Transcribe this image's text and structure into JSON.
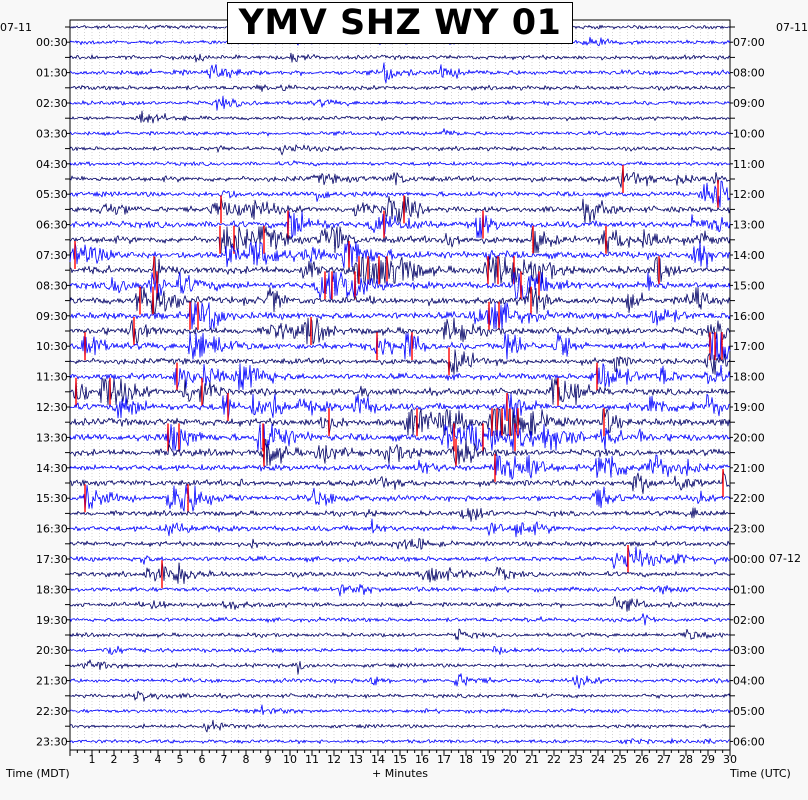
{
  "chart_data": {
    "type": "helicorder",
    "title": "YMV SHZ WY 01",
    "xlabel": "+ Minutes",
    "left_axis_title": "Time (MDT)",
    "right_axis_title": "Time (UTC)",
    "left_start_date": "07-11",
    "right_start_date": "07-11",
    "right_rollover_date": "07-12",
    "x_range": [
      0,
      30
    ],
    "x_ticks": [
      "1",
      "2",
      "3",
      "4",
      "5",
      "6",
      "7",
      "8",
      "9",
      "10",
      "11",
      "12",
      "13",
      "14",
      "15",
      "16",
      "17",
      "18",
      "19",
      "20",
      "21",
      "22",
      "23",
      "24",
      "25",
      "26",
      "27",
      "28",
      "29",
      "30"
    ],
    "rows_per_day": 48,
    "left_tick_labels": [
      "00:30",
      "01:30",
      "02:30",
      "03:30",
      "04:30",
      "05:30",
      "06:30",
      "07:30",
      "08:30",
      "09:30",
      "10:30",
      "11:30",
      "12:30",
      "13:30",
      "14:30",
      "15:30",
      "16:30",
      "17:30",
      "18:30",
      "19:30",
      "20:30",
      "21:30",
      "22:30",
      "23:30"
    ],
    "right_tick_labels": [
      "07:00",
      "08:00",
      "09:00",
      "10:00",
      "11:00",
      "12:00",
      "13:00",
      "14:00",
      "15:00",
      "16:00",
      "17:00",
      "18:00",
      "19:00",
      "20:00",
      "21:00",
      "22:00",
      "23:00",
      "00:00",
      "01:00",
      "02:00",
      "03:00",
      "04:00",
      "05:00",
      "06:00"
    ],
    "trace_colors": [
      "#000066",
      "#0000ff"
    ],
    "clip_color": "#ff0000",
    "grid": "dotted vertical minute lines",
    "activity_profile": [
      0.4,
      0.4,
      0.6,
      0.9,
      0.7,
      0.6,
      0.4,
      0.5,
      0.5,
      0.5,
      1.2,
      1.0,
      1.5,
      1.8,
      2.0,
      2.0,
      2.2,
      2.0,
      2.2,
      2.0,
      2.0,
      1.8,
      1.5,
      1.5,
      1.8,
      2.0,
      2.2,
      2.0,
      1.8,
      1.5,
      1.5,
      1.2,
      1.0,
      1.2,
      1.0,
      1.0,
      1.0,
      0.8,
      0.8,
      0.6,
      0.5,
      0.6,
      0.5,
      0.6,
      0.5,
      0.4,
      0.4,
      0.4
    ]
  }
}
